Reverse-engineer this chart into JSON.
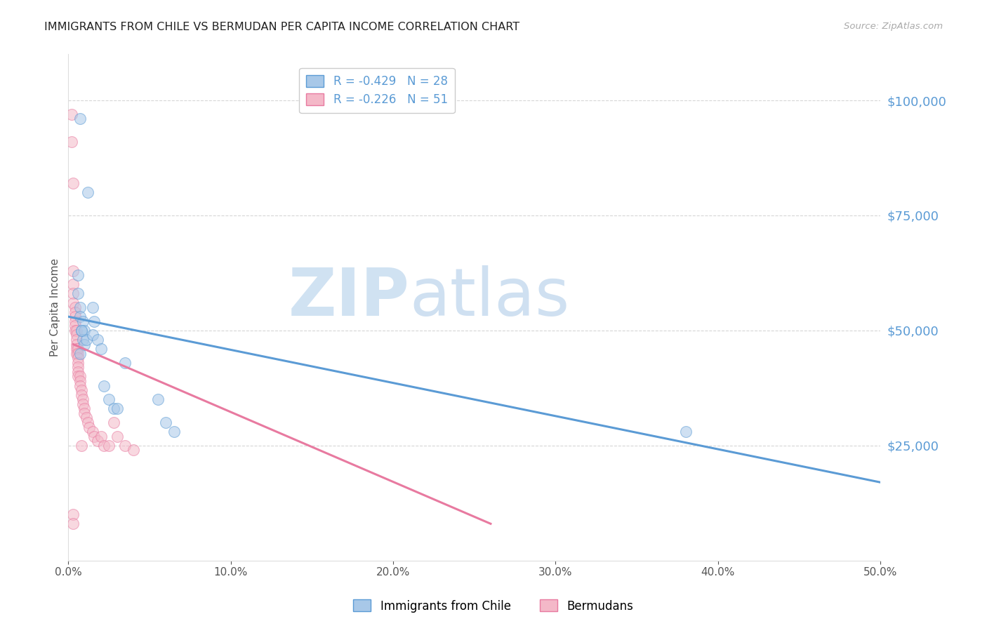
{
  "title": "IMMIGRANTS FROM CHILE VS BERMUDAN PER CAPITA INCOME CORRELATION CHART",
  "source": "Source: ZipAtlas.com",
  "ylabel": "Per Capita Income",
  "right_ytick_values": [
    100000,
    75000,
    50000,
    25000
  ],
  "xlim": [
    0.0,
    0.5
  ],
  "ylim": [
    0,
    110000
  ],
  "xticks": [
    0.0,
    0.1,
    0.2,
    0.3,
    0.4,
    0.5
  ],
  "xtick_labels": [
    "0.0%",
    "10.0%",
    "20.0%",
    "30.0%",
    "40.0%",
    "50.0%"
  ],
  "watermark_part1": "ZIP",
  "watermark_part2": "atlas",
  "legend_label_1": "R = -0.429   N = 28",
  "legend_label_2": "R = -0.226   N = 51",
  "legend_label_chile": "Immigrants from Chile",
  "legend_label_bermudans": "Bermudans",
  "blue_scatter_x": [
    0.007,
    0.012,
    0.006,
    0.006,
    0.007,
    0.007,
    0.008,
    0.009,
    0.01,
    0.009,
    0.01,
    0.011,
    0.015,
    0.016,
    0.015,
    0.018,
    0.02,
    0.022,
    0.025,
    0.028,
    0.03,
    0.035,
    0.055,
    0.06,
    0.065,
    0.38,
    0.007,
    0.008
  ],
  "blue_scatter_y": [
    96000,
    80000,
    62000,
    58000,
    55000,
    53000,
    50000,
    52000,
    50000,
    48000,
    47000,
    48000,
    55000,
    52000,
    49000,
    48000,
    46000,
    38000,
    35000,
    33000,
    33000,
    43000,
    35000,
    30000,
    28000,
    28000,
    45000,
    50000
  ],
  "pink_scatter_x": [
    0.002,
    0.002,
    0.003,
    0.003,
    0.003,
    0.003,
    0.003,
    0.004,
    0.004,
    0.004,
    0.004,
    0.004,
    0.004,
    0.005,
    0.005,
    0.005,
    0.005,
    0.005,
    0.005,
    0.006,
    0.006,
    0.006,
    0.006,
    0.006,
    0.006,
    0.006,
    0.007,
    0.007,
    0.007,
    0.008,
    0.008,
    0.009,
    0.009,
    0.01,
    0.01,
    0.011,
    0.012,
    0.013,
    0.015,
    0.016,
    0.018,
    0.02,
    0.022,
    0.025,
    0.028,
    0.03,
    0.035,
    0.04,
    0.003,
    0.003,
    0.008
  ],
  "pink_scatter_y": [
    97000,
    91000,
    82000,
    63000,
    60000,
    58000,
    56000,
    55000,
    54000,
    53000,
    52000,
    51000,
    50000,
    50000,
    49000,
    48000,
    47000,
    46000,
    45000,
    46000,
    45000,
    44000,
    43000,
    42000,
    41000,
    40000,
    40000,
    39000,
    38000,
    37000,
    36000,
    35000,
    34000,
    33000,
    32000,
    31000,
    30000,
    29000,
    28000,
    27000,
    26000,
    27000,
    25000,
    25000,
    30000,
    27000,
    25000,
    24000,
    10000,
    8000,
    25000
  ],
  "blue_line_x": [
    0.0,
    0.5
  ],
  "blue_line_y": [
    53000,
    17000
  ],
  "pink_line_x": [
    0.003,
    0.26
  ],
  "pink_line_y": [
    47000,
    8000
  ],
  "blue_color": "#5b9bd5",
  "pink_color": "#e87aa0",
  "blue_scatter_facecolor": "#a8c8e8",
  "pink_scatter_facecolor": "#f4b8c8",
  "background_color": "#ffffff",
  "grid_color": "#cccccc",
  "title_color": "#222222",
  "right_axis_color": "#5b9bd5",
  "watermark_color_zip": "#c8ddf0",
  "watermark_color_atlas": "#b0cce8",
  "dot_size": 130,
  "dot_alpha": 0.55,
  "figsize": [
    14.06,
    8.92
  ],
  "dpi": 100
}
